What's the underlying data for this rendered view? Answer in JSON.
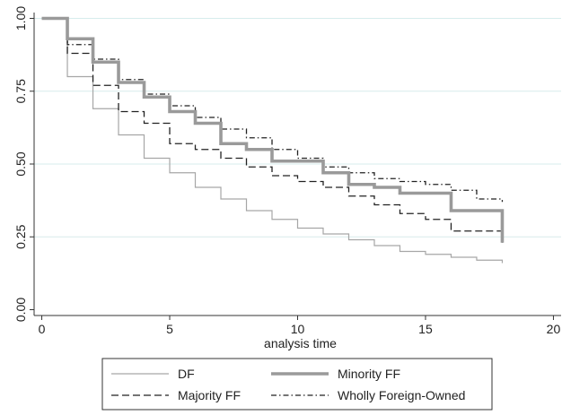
{
  "chart_data": {
    "type": "line",
    "step": true,
    "title": "",
    "xlabel": "analysis time",
    "ylabel": "",
    "xlim": [
      -0.3,
      20.3
    ],
    "ylim": [
      -0.02,
      1.02
    ],
    "x_ticks": [
      0,
      5,
      10,
      15,
      20
    ],
    "x_tick_labels": [
      "0",
      "5",
      "10",
      "15",
      "20"
    ],
    "y_ticks": [
      0,
      0.25,
      0.5,
      0.75,
      1
    ],
    "y_tick_labels": [
      "0.00",
      "0.25",
      "0.50",
      "0.75",
      "1.00"
    ],
    "grid": "horizontal",
    "legend_position": "bottom",
    "series": [
      {
        "name": "DF",
        "color": "#a6a6a6",
        "style": "solid-thin",
        "x": [
          0,
          1,
          2,
          3,
          4,
          5,
          6,
          7,
          8,
          9,
          10,
          11,
          12,
          13,
          14,
          15,
          16,
          17,
          18
        ],
        "y": [
          1.0,
          0.8,
          0.69,
          0.6,
          0.52,
          0.47,
          0.42,
          0.38,
          0.34,
          0.31,
          0.28,
          0.26,
          0.24,
          0.22,
          0.2,
          0.19,
          0.18,
          0.17,
          0.16
        ]
      },
      {
        "name": "Minority FF",
        "color": "#9a9a9a",
        "style": "solid-thick",
        "x": [
          0,
          1,
          2,
          3,
          4,
          5,
          6,
          7,
          8,
          9,
          10,
          11,
          12,
          13,
          14,
          15,
          16,
          17,
          18
        ],
        "y": [
          1.0,
          0.93,
          0.85,
          0.78,
          0.73,
          0.68,
          0.64,
          0.57,
          0.55,
          0.51,
          0.51,
          0.47,
          0.43,
          0.42,
          0.4,
          0.4,
          0.34,
          0.34,
          0.23
        ]
      },
      {
        "name": "Majority FF",
        "color": "#222222",
        "style": "dashed",
        "x": [
          0,
          1,
          2,
          3,
          4,
          5,
          6,
          7,
          8,
          9,
          10,
          11,
          12,
          13,
          14,
          15,
          16,
          17,
          18
        ],
        "y": [
          1.0,
          0.88,
          0.77,
          0.68,
          0.64,
          0.57,
          0.55,
          0.52,
          0.49,
          0.46,
          0.44,
          0.42,
          0.39,
          0.36,
          0.33,
          0.31,
          0.27,
          0.27,
          0.23
        ]
      },
      {
        "name": "Wholly Foreign-Owned",
        "color": "#222222",
        "style": "dash-dot",
        "x": [
          0,
          1,
          2,
          3,
          4,
          5,
          6,
          7,
          8,
          9,
          10,
          11,
          12,
          13,
          14,
          15,
          16,
          17,
          18
        ],
        "y": [
          1.0,
          0.91,
          0.86,
          0.79,
          0.74,
          0.7,
          0.66,
          0.62,
          0.59,
          0.55,
          0.52,
          0.49,
          0.47,
          0.45,
          0.44,
          0.43,
          0.41,
          0.38,
          0.37
        ]
      }
    ]
  }
}
